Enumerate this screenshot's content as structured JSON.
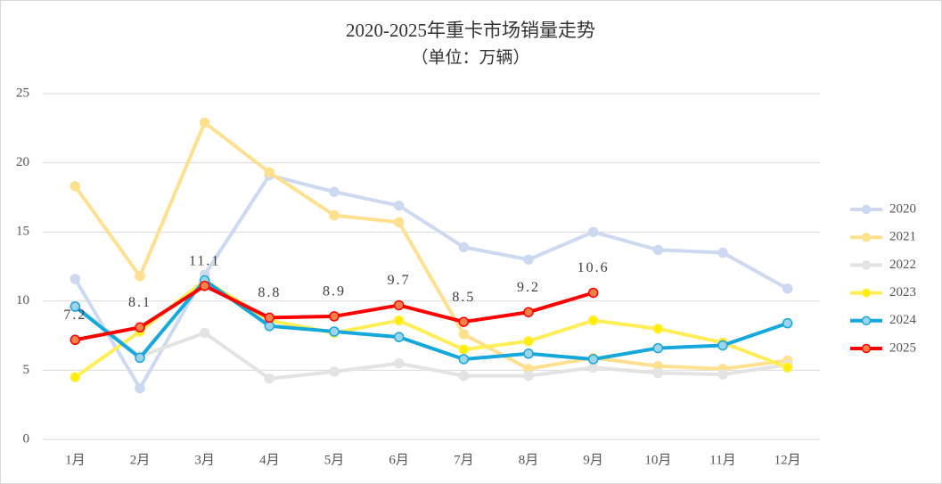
{
  "chart_data": {
    "type": "line",
    "title": "2020-2025年重卡市场销量走势",
    "subtitle": "（单位：万辆）",
    "categories": [
      "1月",
      "2月",
      "3月",
      "4月",
      "5月",
      "6月",
      "7月",
      "8月",
      "9月",
      "10月",
      "11月",
      "12月"
    ],
    "ylim": [
      0,
      25
    ],
    "yticks": [
      0,
      5,
      10,
      15,
      20,
      25
    ],
    "grid": true,
    "legend": "right",
    "series": [
      {
        "name": "2020",
        "color": "#ccd9f1",
        "values": [
          11.6,
          3.7,
          11.9,
          19.1,
          17.9,
          16.9,
          13.9,
          13.0,
          15.0,
          13.7,
          13.5,
          10.9
        ]
      },
      {
        "name": "2021",
        "color": "#ffe08f",
        "values": [
          18.3,
          11.8,
          22.9,
          19.3,
          16.2,
          15.7,
          7.6,
          5.1,
          5.9,
          5.3,
          5.1,
          5.7
        ]
      },
      {
        "name": "2022",
        "color": "#e3e3e3",
        "values": [
          9.7,
          6.0,
          7.7,
          4.4,
          4.9,
          5.5,
          4.6,
          4.6,
          5.2,
          4.8,
          4.7,
          5.4
        ]
      },
      {
        "name": "2023",
        "color": "#ffee55",
        "marker_color": "#ffee00",
        "values": [
          4.5,
          7.8,
          11.5,
          8.6,
          7.7,
          8.6,
          6.5,
          7.1,
          8.6,
          8.0,
          7.0,
          5.2
        ]
      },
      {
        "name": "2024",
        "color": "#14a8dc",
        "marker_color": "#9fd3ea",
        "values": [
          9.6,
          5.9,
          11.5,
          8.2,
          7.8,
          7.4,
          5.8,
          6.2,
          5.8,
          6.6,
          6.8,
          8.4
        ]
      },
      {
        "name": "2025",
        "color": "#ff0000",
        "marker_color": "#f4804a",
        "data_labels": true,
        "values": [
          7.2,
          8.1,
          11.1,
          8.8,
          8.9,
          9.7,
          8.5,
          9.2,
          10.6,
          null,
          null,
          null
        ]
      }
    ]
  }
}
